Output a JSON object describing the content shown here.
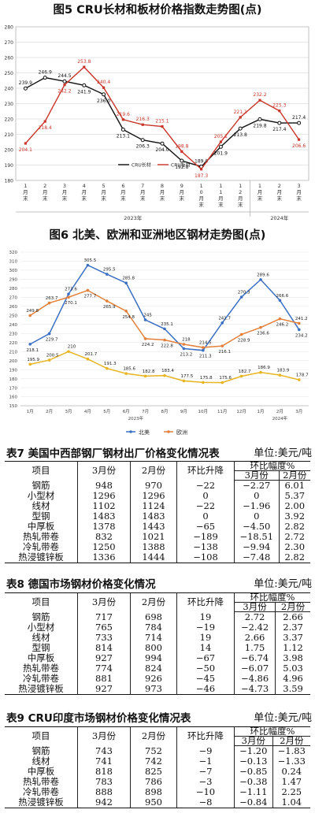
{
  "fig5": {
    "title": "图5 CRU长材和板材价格指数走势图(点)",
    "chart_data": {
      "type": "line",
      "categories": [
        [
          "1",
          "月",
          "末"
        ],
        [
          "2",
          "月",
          "末"
        ],
        [
          "3",
          "月",
          "末"
        ],
        [
          "4",
          "月",
          "末"
        ],
        [
          "5",
          "月",
          "末"
        ],
        [
          "6",
          "月",
          "末"
        ],
        [
          "7",
          "月",
          "末"
        ],
        [
          "8",
          "月",
          "末"
        ],
        [
          "9",
          "月",
          "末"
        ],
        [
          "1",
          "0",
          "月",
          "末"
        ],
        [
          "1",
          "1",
          "月",
          "末"
        ],
        [
          "1",
          "2",
          "月",
          "末"
        ],
        [
          "1",
          "月",
          "末"
        ],
        [
          "2",
          "月",
          "末"
        ],
        [
          "3",
          "月",
          "末"
        ]
      ],
      "year_labels": [
        "2023年",
        "2024年"
      ],
      "ylim": [
        180,
        280
      ],
      "yticks": [
        180,
        190,
        200,
        210,
        220,
        230,
        240,
        250,
        260,
        270,
        280
      ],
      "series": [
        {
          "name": "CRU长材",
          "color": "#111111",
          "values": [
            239.9,
            246.9,
            244.5,
            241.9,
            236.0,
            213.1,
            206.3,
            204.0,
            192.8,
            189.0,
            201.9,
            213.8,
            219.8,
            217.4,
            217.4
          ],
          "labels": [
            "239.9",
            "246.9",
            "244.5",
            "241.9",
            "236.0",
            "213.1",
            "206.3",
            "204.0",
            "192.8",
            "189.0",
            "201.9",
            "213.8",
            "219.8",
            "217.4",
            "217.4"
          ]
        },
        {
          "name": "CRU板材",
          "color": "#c9352a",
          "values": [
            204.1,
            218.4,
            242.2,
            253.8,
            240.4,
            219.6,
            216.3,
            215.1,
            198.8,
            187.3,
            205.1,
            221.1,
            232.2,
            225.3,
            206.6
          ],
          "labels": [
            "204.1",
            "218.4",
            "242.2",
            "253.8",
            "240.4",
            "219.6",
            "216.3",
            "215.1",
            "198.8",
            "187.3",
            "205.1",
            "221.1",
            "232.2",
            "225.3",
            "206.6"
          ]
        }
      ]
    }
  },
  "fig6": {
    "title": "图6 北美、欧洲和亚洲地区钢材走势图(点)",
    "chart_data": {
      "type": "line",
      "categories": [
        "1月",
        "2月",
        "3月",
        "4月",
        "5月",
        "6月",
        "7月",
        "8月",
        "9月",
        "10月",
        "11月",
        "12月",
        "1月",
        "2月",
        "3月"
      ],
      "year_labels": [
        "2023年",
        "2024年"
      ],
      "ylim": [
        150,
        320
      ],
      "yticks": [
        150,
        160,
        170,
        180,
        190,
        200,
        210,
        220,
        230,
        240,
        250,
        260,
        270,
        280,
        290,
        300,
        310,
        320
      ],
      "series": [
        {
          "name": "北美",
          "color": "#3b6fc4",
          "values": [
            218.1,
            229.7,
            273.6,
            305.5,
            295.5,
            285.8,
            245.0,
            235.1,
            213.2,
            211.3,
            241.7,
            270.3,
            289.6,
            266.6,
            234.2
          ],
          "labels": [
            "218.1",
            "229.7",
            "273.6",
            "305.5",
            "295.5",
            "285.8",
            "245",
            "235.1",
            "213.2",
            "211.3",
            "241.7",
            "270.3",
            "289.6",
            "266.6",
            "234.2"
          ]
        },
        {
          "name": "欧洲",
          "color": "#e3803a",
          "values": [
            249.8,
            263.7,
            270.1,
            277.7,
            265.9,
            254.8,
            224.2,
            222.8,
            218.0,
            214.5,
            216.1,
            228.9,
            236.6,
            246.2,
            241.2
          ],
          "labels": [
            "249.8",
            "263.7",
            "270.1",
            "277.7",
            "265.9",
            "254.8",
            "224.2",
            "222.8",
            "218",
            "214.5",
            "216.1",
            "228.9",
            "236.6",
            "246.2",
            "241.2"
          ]
        },
        {
          "name": "亚洲",
          "color": "#e8b420",
          "values": [
            195.9,
            200.5,
            210.0,
            201.7,
            191.3,
            185.6,
            182.8,
            183.4,
            177.5,
            175.8,
            175.6,
            182.7,
            186.9,
            183.9,
            178.7
          ],
          "labels": [
            "195.9",
            "200.5",
            "210",
            "201.7",
            "191.3",
            "185.6",
            "182.8",
            "183.4",
            "177.5",
            "175.8",
            "175.6",
            "182.7",
            "186.9",
            "183.9",
            "178.7"
          ]
        }
      ],
      "legend_shown": [
        "北美",
        "欧洲"
      ]
    }
  },
  "table7": {
    "title": "表7 美国中西部钢厂钢材出厂价格变化情况表",
    "unit": "单位:美元/吨",
    "headers": {
      "item": "项目",
      "mar": "3月份",
      "feb": "2月份",
      "chg": "环比升降",
      "pct": "环比幅度%",
      "pct_mar": "3月份",
      "pct_feb": "2月份"
    },
    "rows": [
      [
        "钢筋",
        "948",
        "970",
        "−22",
        "−2.27",
        "6.01"
      ],
      [
        "小型材",
        "1296",
        "1296",
        "0",
        "0",
        "5.37"
      ],
      [
        "线材",
        "1102",
        "1124",
        "−22",
        "−1.96",
        "2.00"
      ],
      [
        "型钢",
        "1483",
        "1483",
        "0",
        "0",
        "3.92"
      ],
      [
        "中厚板",
        "1378",
        "1443",
        "−65",
        "−4.50",
        "2.82"
      ],
      [
        "热轧带卷",
        "832",
        "1021",
        "−189",
        "−18.51",
        "2.72"
      ],
      [
        "冷轧带卷",
        "1250",
        "1388",
        "−138",
        "−9.94",
        "2.30"
      ],
      [
        "热浸镀锌板",
        "1336",
        "1444",
        "−108",
        "−7.48",
        "2.82"
      ]
    ]
  },
  "table8": {
    "title": "表8 德国市场钢材价格变化情况",
    "unit": "单位:美元/吨",
    "headers": {
      "item": "项目",
      "mar": "3月份",
      "feb": "2月份",
      "chg": "环比升降",
      "pct": "环比幅度%",
      "pct_mar": "3月份",
      "pct_feb": "2月份"
    },
    "rows": [
      [
        "钢筋",
        "717",
        "698",
        "19",
        "2.72",
        "2.66"
      ],
      [
        "小型材",
        "765",
        "784",
        "−19",
        "−2.42",
        "2.37"
      ],
      [
        "线材",
        "733",
        "714",
        "19",
        "2.66",
        "3.37"
      ],
      [
        "型钢",
        "814",
        "800",
        "14",
        "1.75",
        "1.12"
      ],
      [
        "中厚板",
        "927",
        "994",
        "−67",
        "−6.74",
        "3.98"
      ],
      [
        "热轧带卷",
        "774",
        "824",
        "−50",
        "−6.07",
        "5.03"
      ],
      [
        "冷轧带卷",
        "881",
        "926",
        "−45",
        "−4.86",
        "4.96"
      ],
      [
        "热浸镀锌板",
        "927",
        "973",
        "−46",
        "−4.73",
        "3.59"
      ]
    ]
  },
  "table9": {
    "title": "表9 CRU印度市场钢材价格变化情况表",
    "unit": "单位:美元/吨",
    "headers": {
      "item": "项目",
      "mar": "3月份",
      "feb": "2月份",
      "chg": "环比升降",
      "pct": "环比幅度%",
      "pct_mar": "3月份",
      "pct_feb": "2月份"
    },
    "rows": [
      [
        "钢筋",
        "743",
        "752",
        "−9",
        "−1.20",
        "−1.83"
      ],
      [
        "线材",
        "741",
        "742",
        "−1",
        "−0.13",
        "−1.33"
      ],
      [
        "中厚板",
        "818",
        "825",
        "−7",
        "−0.85",
        "0.24"
      ],
      [
        "热轧带卷",
        "783",
        "786",
        "−3",
        "−0.38",
        "1.47"
      ],
      [
        "冷轧带卷",
        "888",
        "898",
        "−10",
        "−1.11",
        "2.25"
      ],
      [
        "热浸镀锌板",
        "942",
        "950",
        "−8",
        "−0.84",
        "1.04"
      ]
    ]
  }
}
